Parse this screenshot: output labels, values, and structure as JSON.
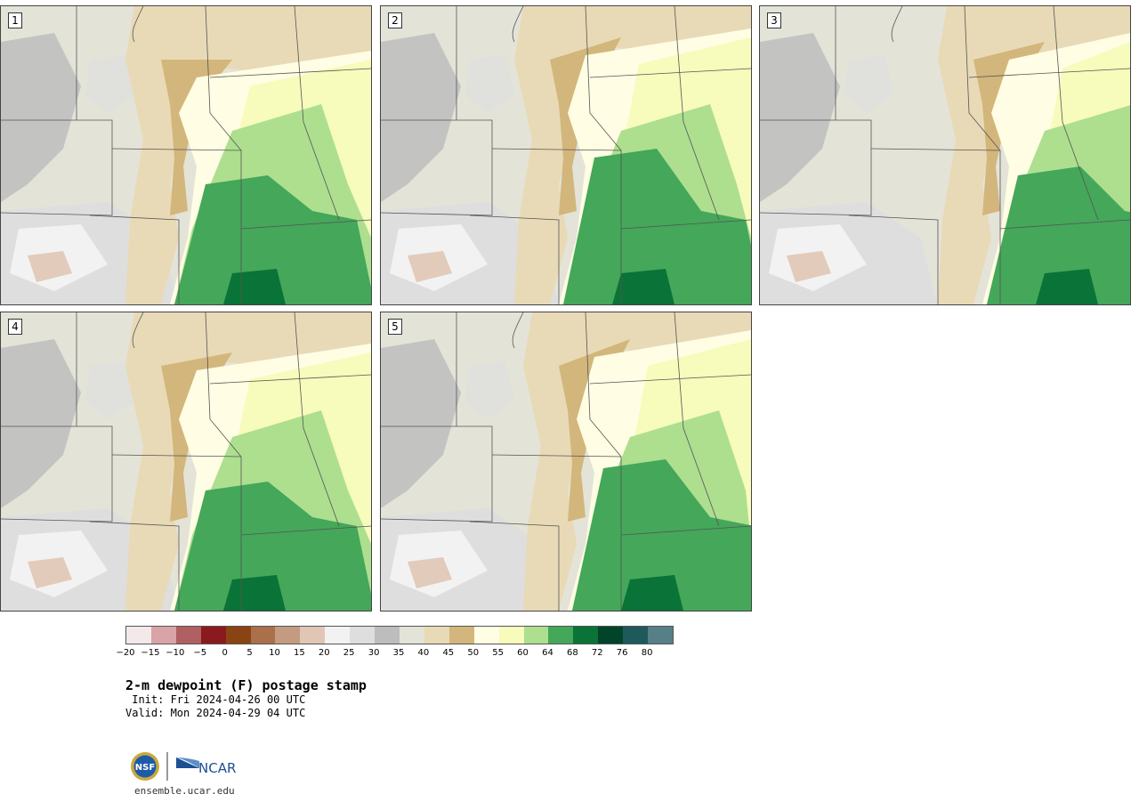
{
  "panels": [
    {
      "label": "1"
    },
    {
      "label": "2"
    },
    {
      "label": "3"
    },
    {
      "label": "4"
    },
    {
      "label": "5"
    }
  ],
  "colorbar": {
    "ticks": [
      "−20",
      "−15",
      "−10",
      "−5",
      "0",
      "5",
      "10",
      "15",
      "20",
      "25",
      "30",
      "35",
      "40",
      "45",
      "50",
      "55",
      "60",
      "64",
      "68",
      "72",
      "76",
      "80"
    ],
    "colors": [
      "#f4e9ea",
      "#d8a4a8",
      "#b05f62",
      "#8b1a1e",
      "#8a4413",
      "#a9704a",
      "#c49b80",
      "#e0c6b4",
      "#f2f2f2",
      "#dedede",
      "#bdbdbd",
      "#e4e3d8",
      "#e8dab6",
      "#d2b67b",
      "#fffde3",
      "#f7fbbc",
      "#addf8f",
      "#44a75a",
      "#0a7337",
      "#02442a",
      "#1e5a5c",
      "#567f86"
    ]
  },
  "title": "2-m dewpoint (F) postage stamp",
  "init": " Init: Fri 2024-04-26 00 UTC",
  "valid": "Valid: Mon 2024-04-29 04 UTC",
  "logo": {
    "nsf": "NSF",
    "ncar": "NCAR"
  },
  "site": "ensemble.ucar.edu"
}
